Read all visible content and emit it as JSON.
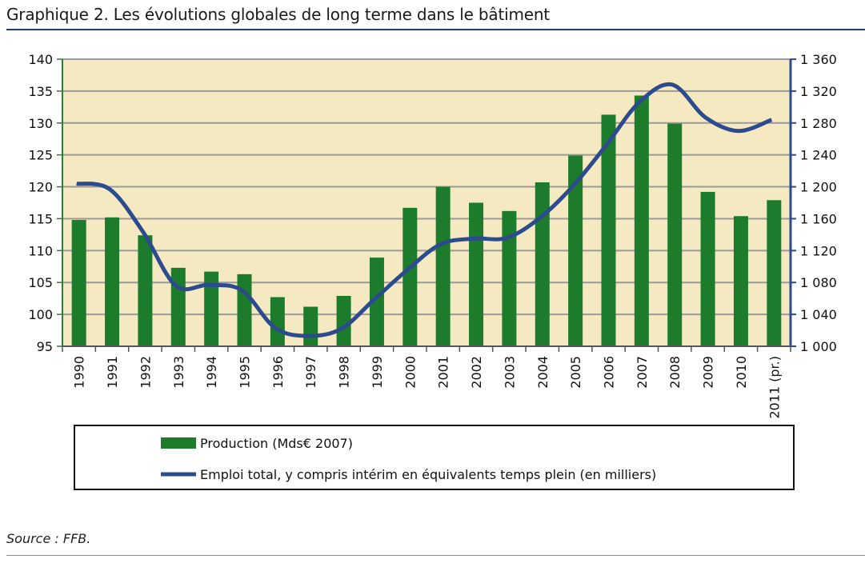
{
  "header": {
    "title": "Graphique 2. Les évolutions globales de long terme dans le bâtiment"
  },
  "footer": {
    "source": "Source : FFB."
  },
  "colors": {
    "plot_background": "#f5e9c2",
    "bar": "#1d7b2c",
    "line": "#2c4a8e",
    "left_axis": "#2e7d32",
    "right_axis": "#2c4a8e",
    "grid": "#9a9a9a"
  },
  "chart_data": {
    "type": "bar",
    "categories": [
      "1990",
      "1991",
      "1992",
      "1993",
      "1994",
      "1995",
      "1996",
      "1997",
      "1998",
      "1999",
      "2000",
      "2001",
      "2002",
      "2003",
      "2004",
      "2005",
      "2006",
      "2007",
      "2008",
      "2009",
      "2010",
      "2011 (pr.)"
    ],
    "series": [
      {
        "name": "Production (Mds€ 2007)",
        "type": "bar",
        "axis": "left",
        "values": [
          114.8,
          115.2,
          112.4,
          107.3,
          106.7,
          106.3,
          102.7,
          101.2,
          102.9,
          108.9,
          116.7,
          120.0,
          117.5,
          116.2,
          120.7,
          124.9,
          131.3,
          134.3,
          129.9,
          119.2,
          115.4,
          117.9
        ]
      },
      {
        "name": "Emploi total, y compris intérim en équivalents temps plein (en milliers)",
        "type": "line",
        "axis": "right",
        "values": [
          1204,
          1197,
          1144,
          1076,
          1077,
          1070,
          1023,
          1013,
          1022,
          1059,
          1096,
          1128,
          1135,
          1136,
          1161,
          1201,
          1252,
          1306,
          1328,
          1287,
          1270,
          1284
        ]
      }
    ],
    "left_axis": {
      "ylim": [
        95,
        140
      ],
      "ticks": [
        95,
        100,
        105,
        110,
        115,
        120,
        125,
        130,
        135,
        140
      ],
      "tick_labels": [
        "95",
        "100",
        "105",
        "110",
        "115",
        "120",
        "125",
        "130",
        "135",
        "140"
      ]
    },
    "right_axis": {
      "ylim": [
        1000,
        1360
      ],
      "ticks": [
        1000,
        1040,
        1080,
        1120,
        1160,
        1200,
        1240,
        1280,
        1320,
        1360
      ],
      "tick_labels": [
        "1 000",
        "1 040",
        "1 080",
        "1 120",
        "1 160",
        "1 200",
        "1 240",
        "1 280",
        "1 320",
        "1 360"
      ]
    },
    "grid": true,
    "legend_placement": "bottom"
  }
}
